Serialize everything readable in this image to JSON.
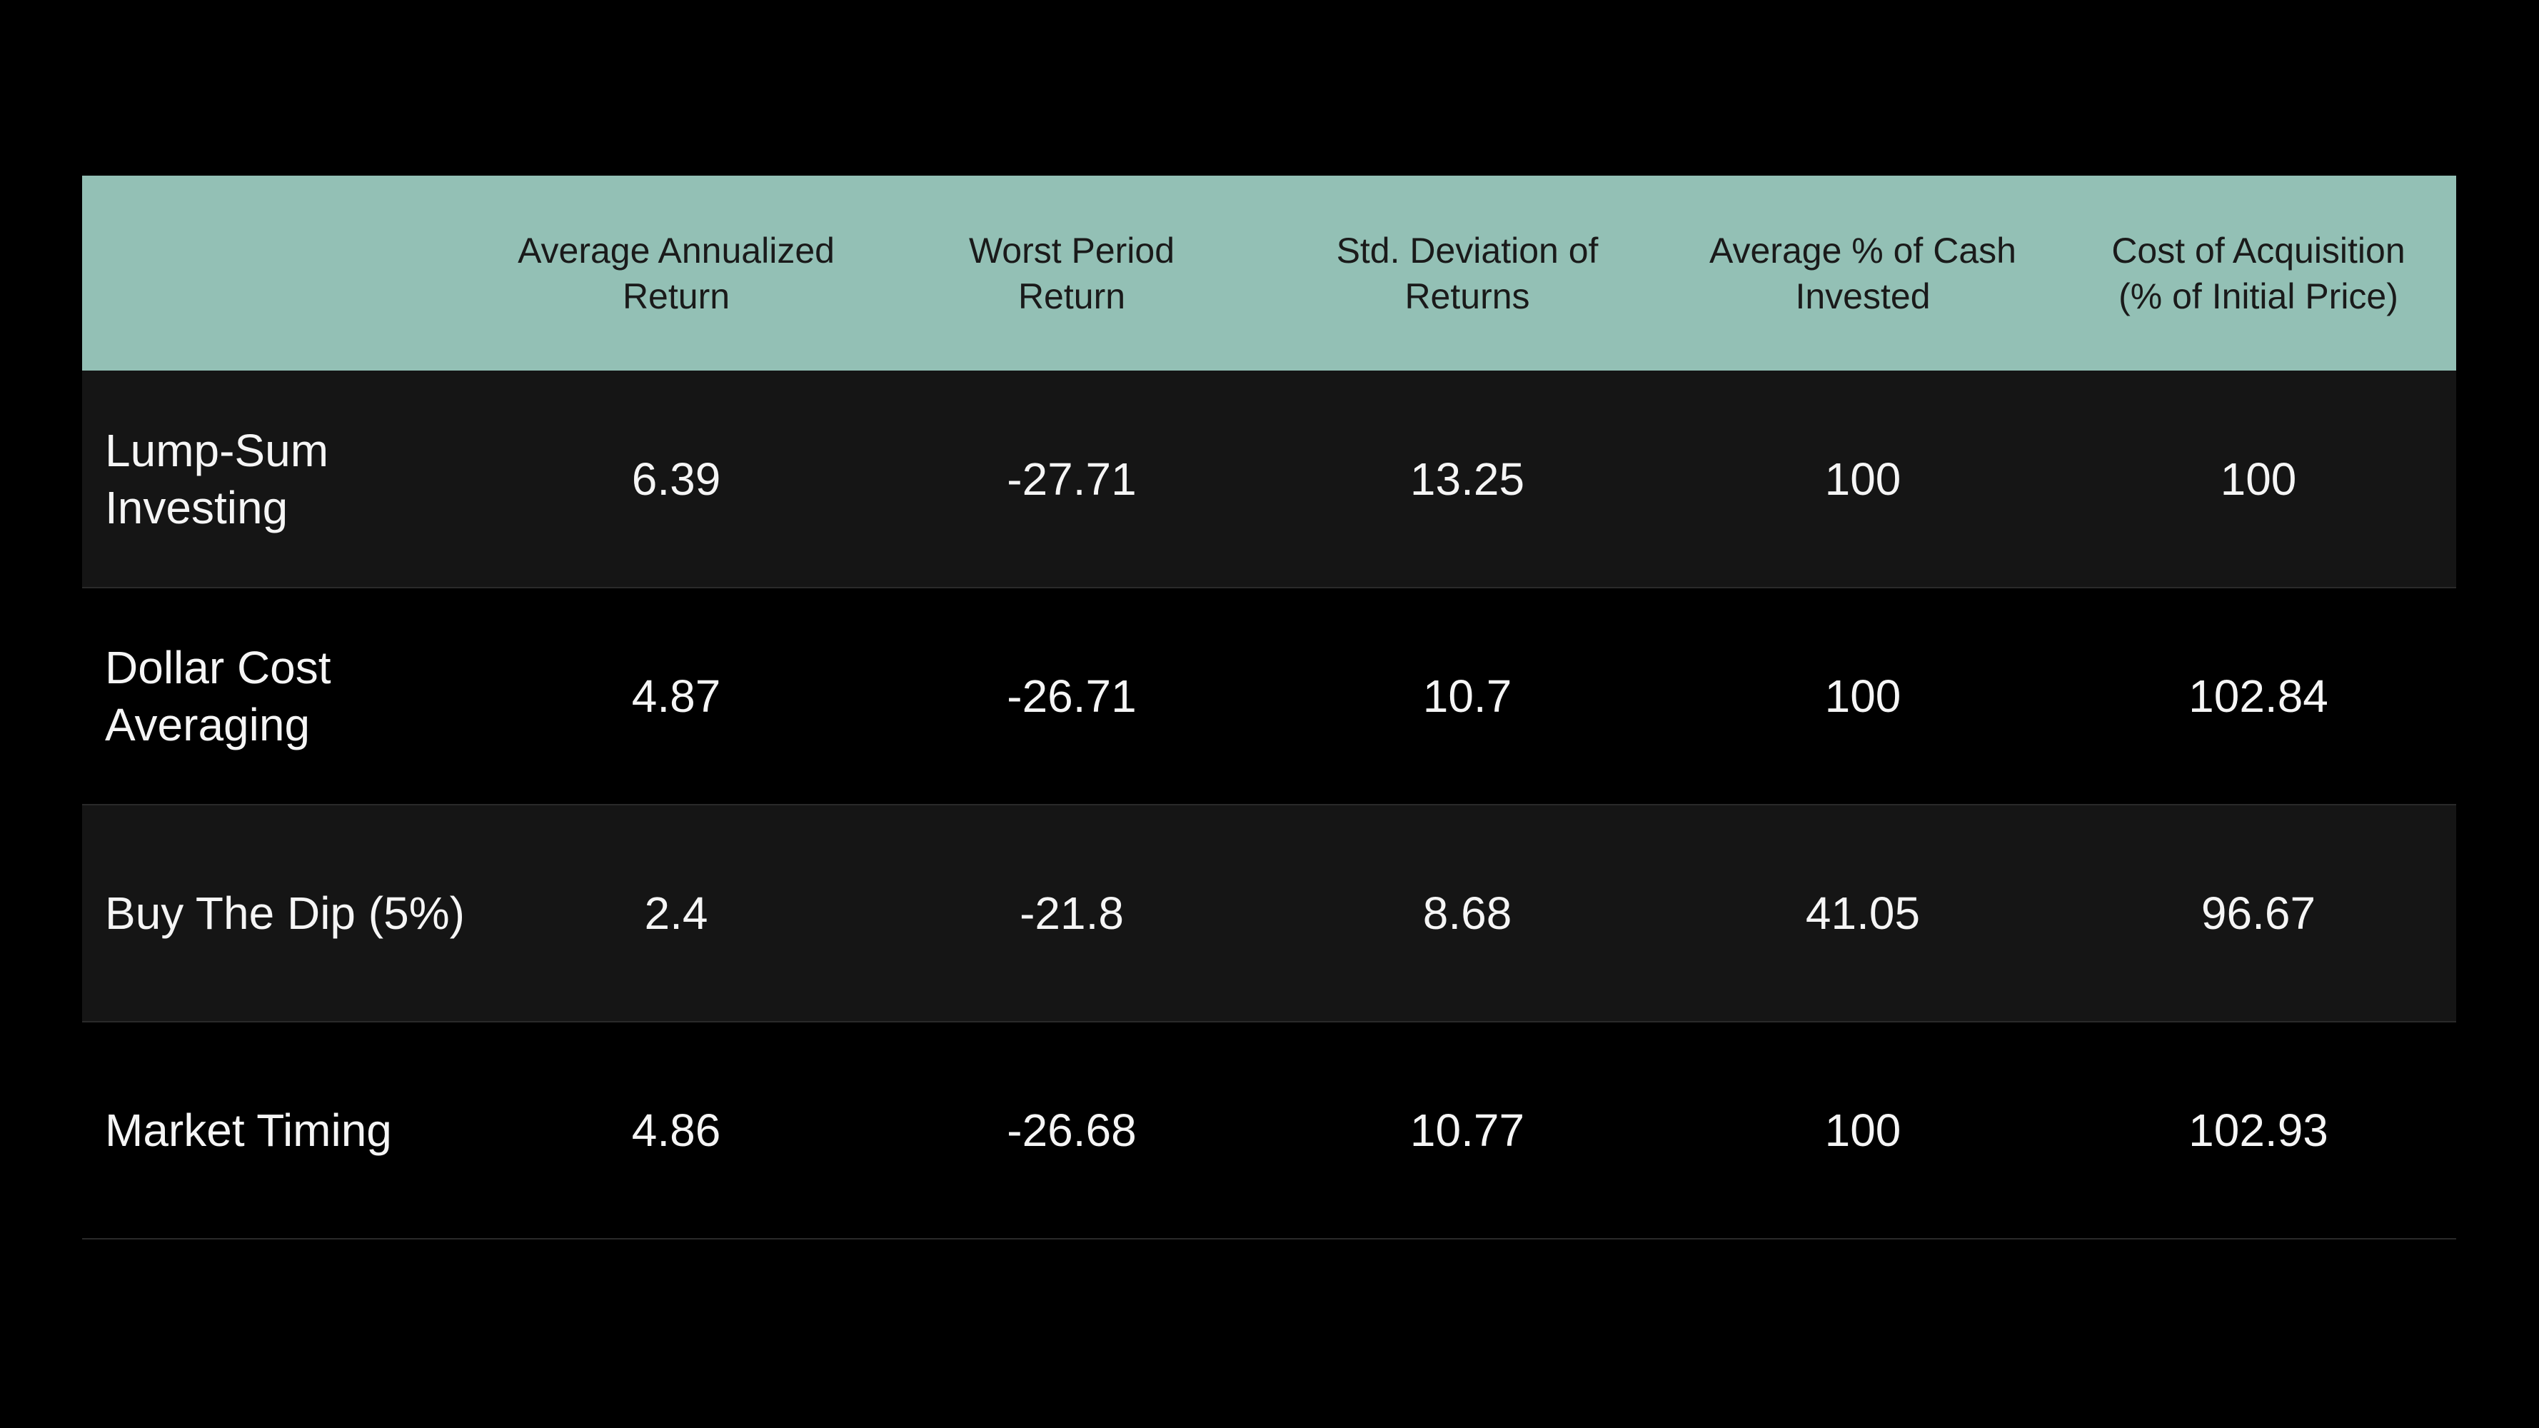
{
  "colors": {
    "background": "#000000",
    "header_background": "#93c0b5",
    "header_text": "#1a1a1a",
    "row_alt_background": "#151515",
    "row_text": "#f5f5f5",
    "row_divider": "#2a2a2a"
  },
  "table": {
    "headers": [
      {
        "lines": [
          "",
          ""
        ]
      },
      {
        "lines": [
          "Average Annualized",
          "Return"
        ]
      },
      {
        "lines": [
          "Worst Period",
          "Return"
        ]
      },
      {
        "lines": [
          "Std. Deviation of",
          "Returns"
        ]
      },
      {
        "lines": [
          "Average % of Cash",
          "Invested"
        ]
      },
      {
        "lines": [
          "Cost of Acquisition",
          "(% of Initial Price)"
        ]
      }
    ],
    "rows": [
      {
        "label_lines": [
          "Lump-Sum",
          "Investing"
        ],
        "cells": [
          "6.39",
          "-27.71",
          "13.25",
          "100",
          "100"
        ]
      },
      {
        "label_lines": [
          "Dollar Cost",
          "Averaging"
        ],
        "cells": [
          "4.87",
          "-26.71",
          "10.7",
          "100",
          "102.84"
        ]
      },
      {
        "label_lines": [
          "Buy The Dip (5%)"
        ],
        "cells": [
          "2.4",
          "-21.8",
          "8.68",
          "41.05",
          "96.67"
        ]
      },
      {
        "label_lines": [
          "Market Timing"
        ],
        "cells": [
          "4.86",
          "-26.68",
          "10.77",
          "100",
          "102.93"
        ]
      }
    ]
  }
}
